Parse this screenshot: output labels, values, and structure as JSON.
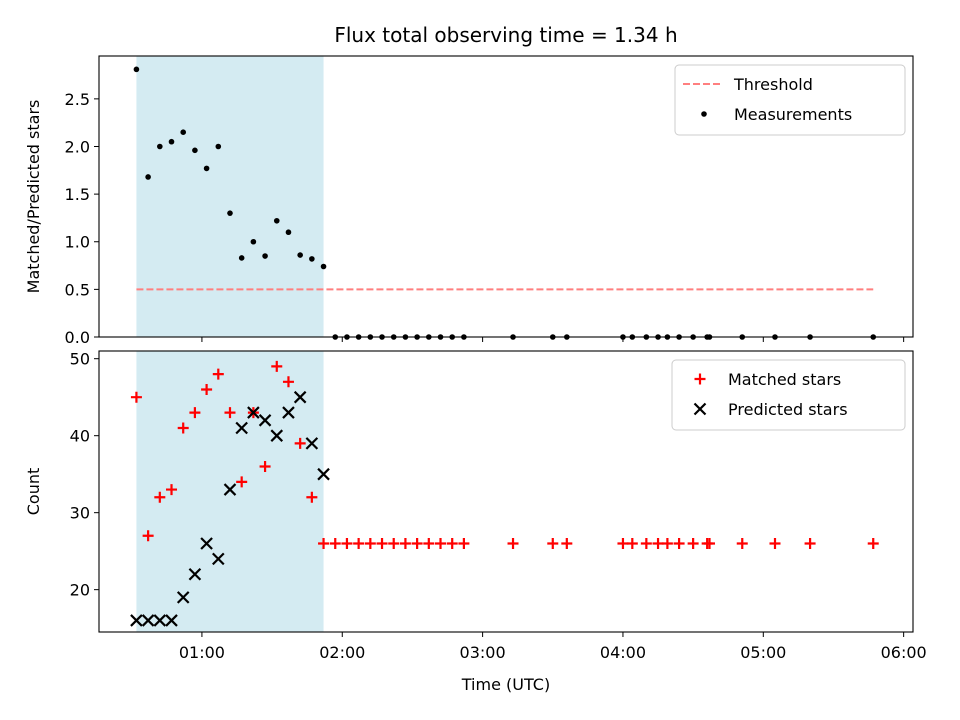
{
  "figure": {
    "title": "Flux total observing time = 1.34 h",
    "xlabel": "Time (UTC)",
    "shade_color": "#add8e6",
    "threshold_color": "#ff7f7f",
    "matched_color": "#ff0000",
    "predicted_color": "#000000",
    "measurement_color": "#000000"
  },
  "chart_data": [
    {
      "type": "scatter",
      "ylabel": "Matched/Predicted stars",
      "xlim": [
        "00:16",
        "06:04"
      ],
      "ylim": [
        0,
        2.95
      ],
      "xticks": [
        "01:00",
        "02:00",
        "03:00",
        "04:00",
        "05:00",
        "06:00"
      ],
      "yticks": [
        "0.0",
        "0.5",
        "1.0",
        "1.5",
        "2.0",
        "2.5"
      ],
      "grid": false,
      "legend_position": "top-right",
      "shaded_span": [
        "00:32",
        "01:52"
      ],
      "threshold": {
        "name": "Threshold",
        "y": 0.5,
        "x_range": [
          "00:32",
          "05:47"
        ],
        "style": "dashed"
      },
      "series": [
        {
          "name": "Measurements",
          "marker": "dot",
          "x": [
            "00:32",
            "00:37",
            "00:42",
            "00:47",
            "00:52",
            "00:57",
            "01:02",
            "01:07",
            "01:12",
            "01:17",
            "01:22",
            "01:27",
            "01:32",
            "01:37",
            "01:42",
            "01:47",
            "01:52",
            "01:57",
            "02:02",
            "02:07",
            "02:12",
            "02:17",
            "02:22",
            "02:27",
            "02:32",
            "02:37",
            "02:42",
            "02:47",
            "02:52",
            "03:13",
            "03:30",
            "03:36",
            "04:00",
            "04:04",
            "04:10",
            "04:15",
            "04:19",
            "04:24",
            "04:30",
            "04:36",
            "04:37",
            "04:51",
            "05:05",
            "05:20",
            "05:47"
          ],
          "y": [
            2.81,
            1.68,
            2.0,
            2.05,
            2.15,
            1.96,
            1.77,
            2.0,
            1.3,
            0.83,
            1.0,
            0.85,
            1.22,
            1.1,
            0.86,
            0.82,
            0.74,
            0,
            0,
            0,
            0,
            0,
            0,
            0,
            0,
            0,
            0,
            0,
            0,
            0,
            0,
            0,
            0,
            0,
            0,
            0,
            0,
            0,
            0,
            0,
            0,
            0,
            0,
            0,
            0
          ]
        }
      ]
    },
    {
      "type": "scatter",
      "ylabel": "Count",
      "xlim": [
        "00:16",
        "06:04"
      ],
      "ylim": [
        14.5,
        51
      ],
      "xticks": [
        "01:00",
        "02:00",
        "03:00",
        "04:00",
        "05:00",
        "06:00"
      ],
      "yticks": [
        "20",
        "30",
        "40",
        "50"
      ],
      "grid": false,
      "legend_position": "top-right",
      "shaded_span": [
        "00:32",
        "01:52"
      ],
      "series": [
        {
          "name": "Matched stars",
          "marker": "plus",
          "x": [
            "00:32",
            "00:37",
            "00:42",
            "00:47",
            "00:52",
            "00:57",
            "01:02",
            "01:07",
            "01:12",
            "01:17",
            "01:22",
            "01:27",
            "01:32",
            "01:37",
            "01:42",
            "01:47",
            "01:52",
            "01:57",
            "02:02",
            "02:07",
            "02:12",
            "02:17",
            "02:22",
            "02:27",
            "02:32",
            "02:37",
            "02:42",
            "02:47",
            "02:52",
            "03:13",
            "03:30",
            "03:36",
            "04:00",
            "04:04",
            "04:10",
            "04:15",
            "04:19",
            "04:24",
            "04:30",
            "04:36",
            "04:37",
            "04:51",
            "05:05",
            "05:20",
            "05:47"
          ],
          "y": [
            45,
            27,
            32,
            33,
            41,
            43,
            46,
            48,
            43,
            34,
            43,
            36,
            49,
            47,
            39,
            32,
            26,
            26,
            26,
            26,
            26,
            26,
            26,
            26,
            26,
            26,
            26,
            26,
            26,
            26,
            26,
            26,
            26,
            26,
            26,
            26,
            26,
            26,
            26,
            26,
            26,
            26,
            26,
            26,
            26
          ]
        },
        {
          "name": "Predicted stars",
          "marker": "x",
          "x": [
            "00:32",
            "00:37",
            "00:42",
            "00:47",
            "00:52",
            "00:57",
            "01:02",
            "01:07",
            "01:12",
            "01:17",
            "01:22",
            "01:27",
            "01:32",
            "01:37",
            "01:42",
            "01:47",
            "01:52"
          ],
          "y": [
            16,
            16,
            16,
            16,
            19,
            22,
            26,
            24,
            33,
            41,
            43,
            42,
            40,
            43,
            45,
            39,
            35
          ]
        }
      ]
    }
  ]
}
